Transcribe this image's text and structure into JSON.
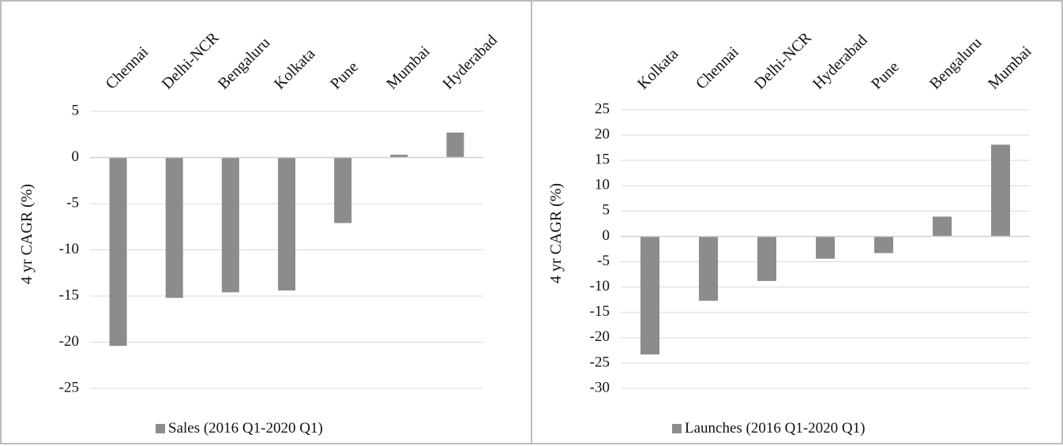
{
  "chart_data": [
    {
      "type": "bar",
      "categories": [
        "Chennai",
        "Delhi-NCR",
        "Bengaluru",
        "Kolkata",
        "Pune",
        "Mumbai",
        "Hyderabad"
      ],
      "series": [
        {
          "name": "Sales (2016 Q1-2020 Q1)",
          "values": [
            -20.4,
            -15.2,
            -14.6,
            -14.4,
            -7.1,
            0.3,
            2.7
          ]
        }
      ],
      "ylabel": "4 yr CAGR (%)",
      "xlabel": "",
      "ylim": [
        -25,
        5
      ],
      "yticks": [
        "5",
        "0",
        "-5",
        "-10",
        "-15",
        "-20",
        "-25"
      ],
      "grid": true,
      "legend": "bottom",
      "color": "#8c8c8c"
    },
    {
      "type": "bar",
      "categories": [
        "Kolkata",
        "Chennai",
        "Delhi-NCR",
        "Hyderabad",
        "Pune",
        "Bengaluru",
        "Mumbai"
      ],
      "series": [
        {
          "name": "Launches (2016 Q1-2020 Q1)",
          "values": [
            -23.3,
            -12.7,
            -8.8,
            -4.4,
            -3.3,
            3.9,
            18.1
          ]
        }
      ],
      "ylabel": "4 yr CAGR (%)",
      "xlabel": "",
      "ylim": [
        -30,
        25
      ],
      "yticks": [
        "25",
        "20",
        "15",
        "10",
        "5",
        "0",
        "-5",
        "-10",
        "-15",
        "-20",
        "-25",
        "-30"
      ],
      "grid": true,
      "legend": "bottom",
      "color": "#8c8c8c"
    }
  ]
}
